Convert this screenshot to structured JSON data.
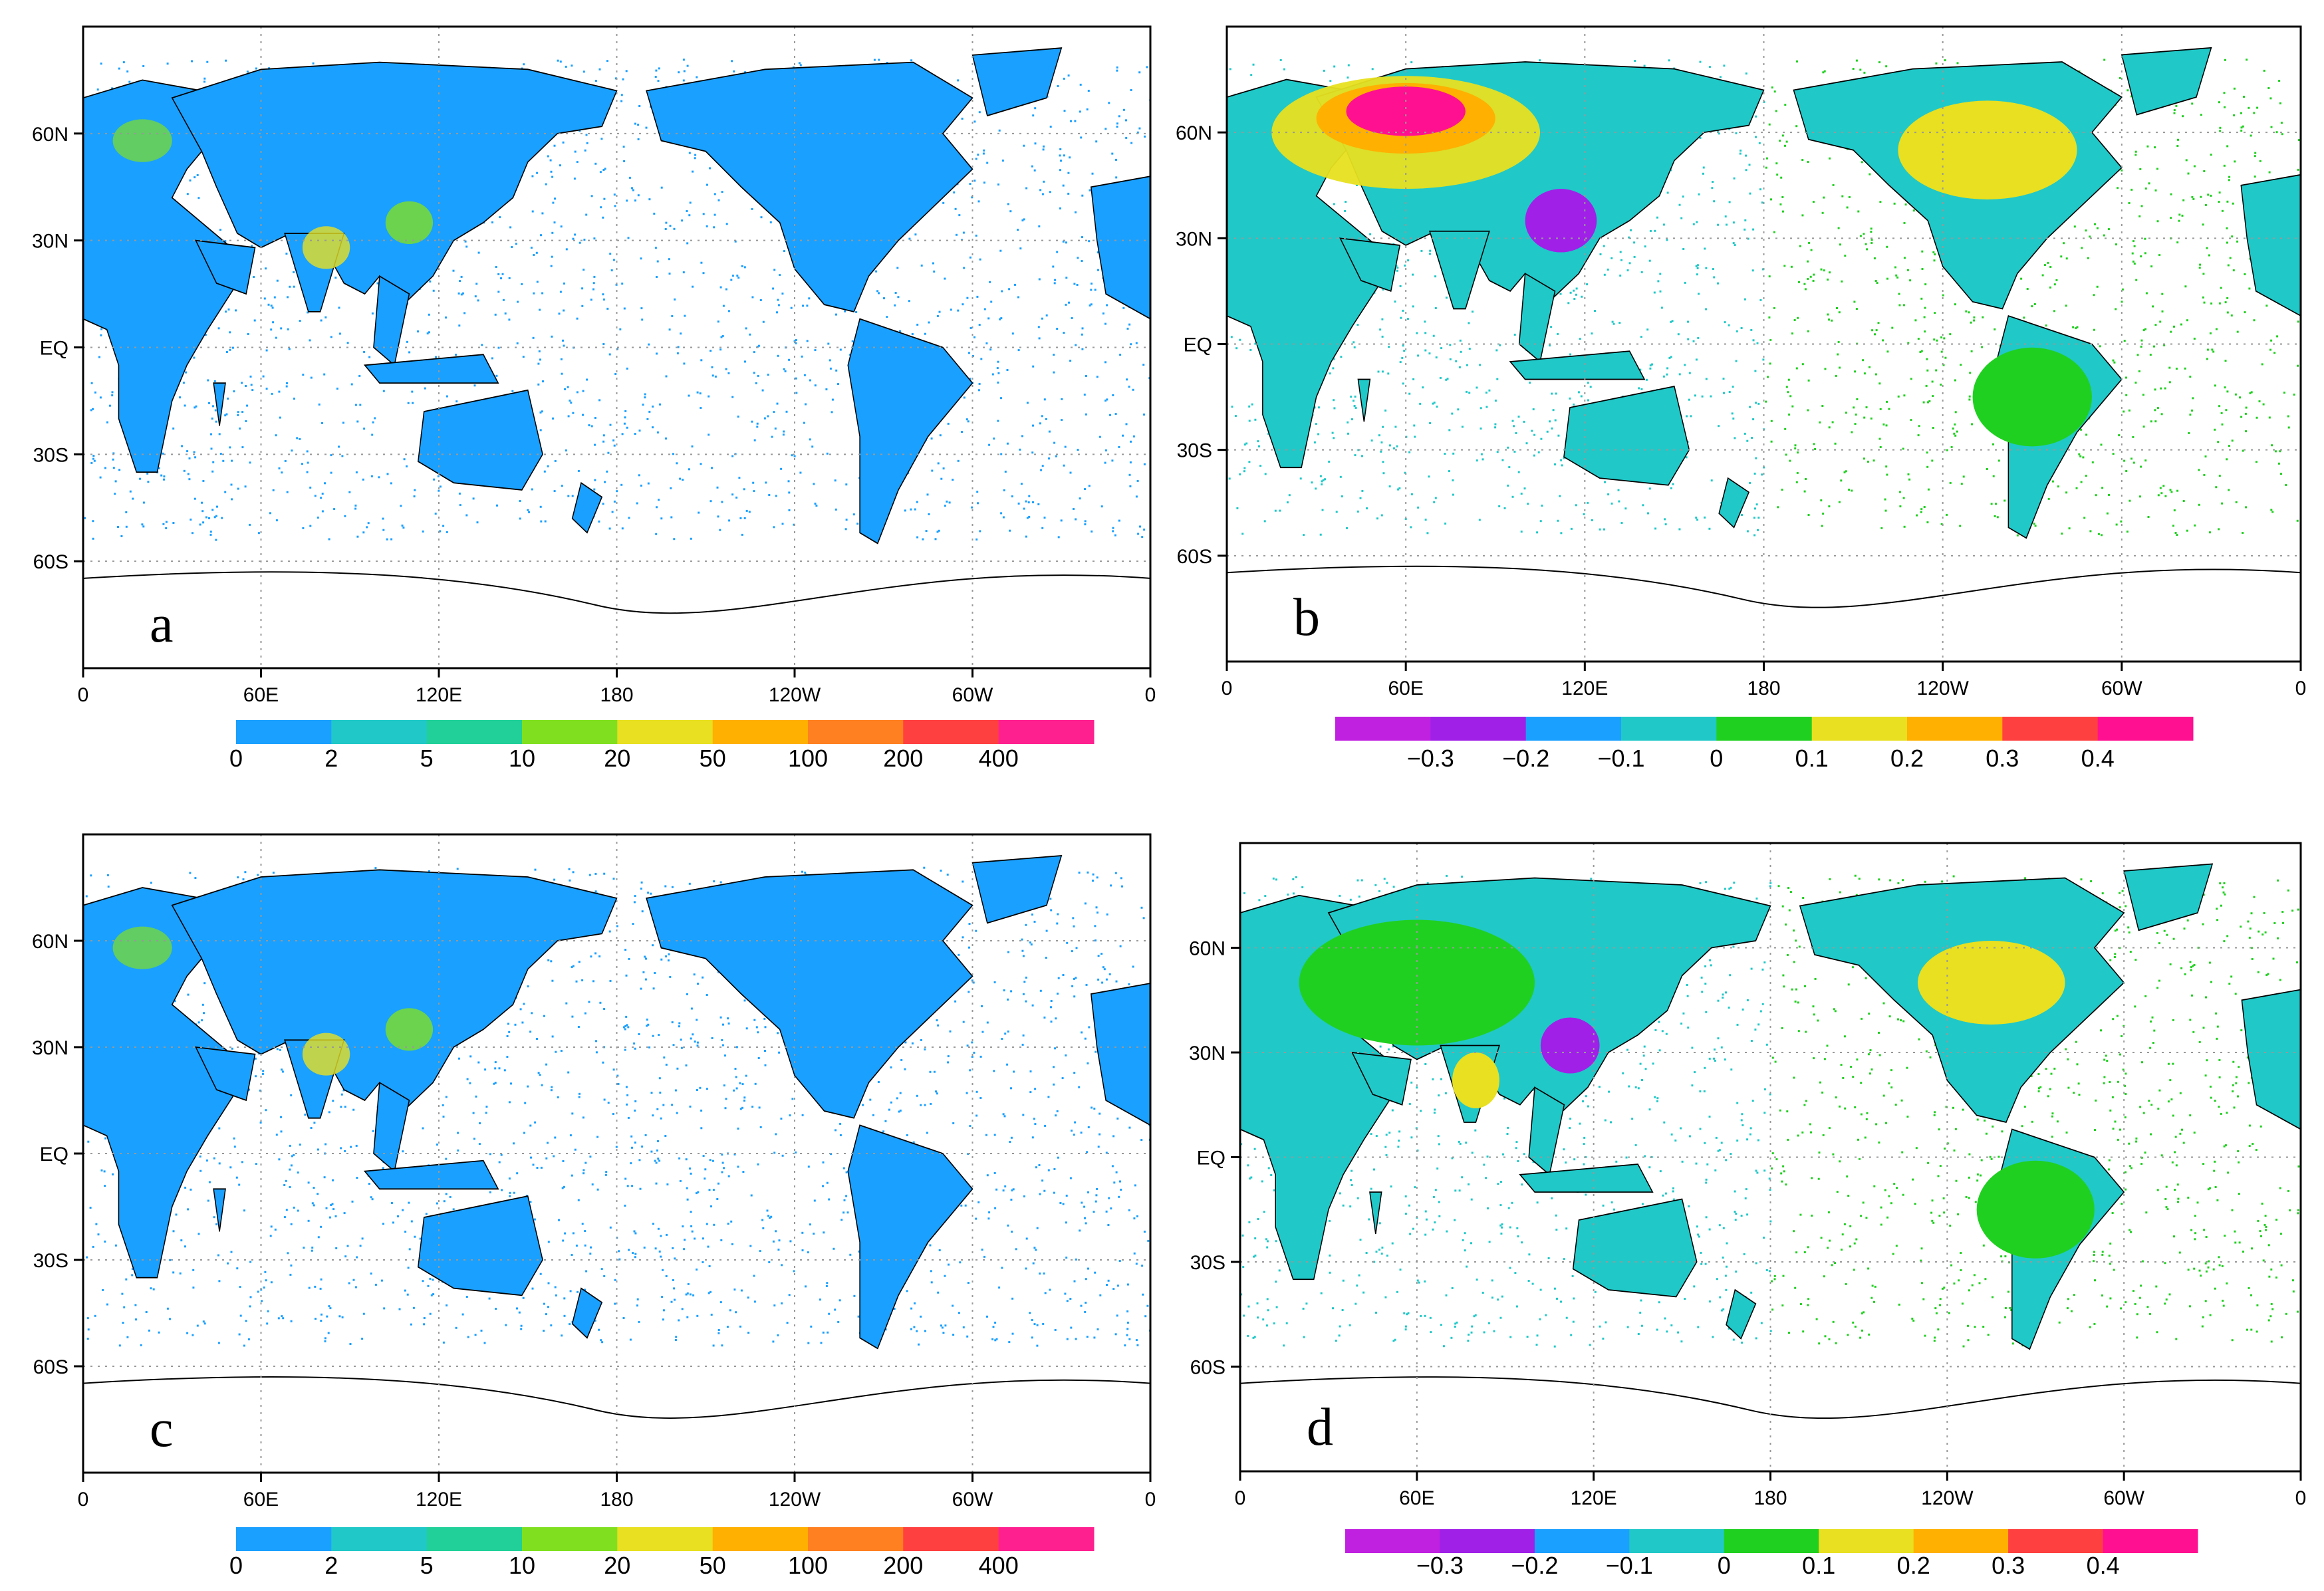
{
  "figure": {
    "panels": [
      {
        "id": "a",
        "label": "a",
        "lon_ticks": [
          "0",
          "60E",
          "120E",
          "180",
          "120W",
          "60W",
          "0"
        ],
        "lat_ticks": [
          "60N",
          "30N",
          "EQ",
          "30S",
          "60S"
        ],
        "colorbar": {
          "labels": [
            "0",
            "2",
            "5",
            "10",
            "20",
            "50",
            "100",
            "200",
            "400"
          ],
          "colors": [
            "#1aa0ff",
            "#20c8c8",
            "#20d098",
            "#80e020",
            "#e8e020",
            "#ffb000",
            "#ff8020",
            "#ff4040",
            "#ff2090"
          ]
        }
      },
      {
        "id": "b",
        "label": "b",
        "lon_ticks": [
          "0",
          "60E",
          "120E",
          "180",
          "120W",
          "60W",
          "0"
        ],
        "lat_ticks": [
          "60N",
          "30N",
          "EQ",
          "30S",
          "60S"
        ],
        "colorbar": {
          "labels": [
            "−0.3",
            "−0.2",
            "−0.1",
            "0",
            "0.1",
            "0.2",
            "0.3",
            "0.4"
          ],
          "colors": [
            "#c020e0",
            "#a020e8",
            "#1aa0ff",
            "#20c8c8",
            "#20d020",
            "#e8e020",
            "#ffb000",
            "#ff4040",
            "#ff1090"
          ]
        }
      },
      {
        "id": "c",
        "label": "c",
        "lon_ticks": [
          "0",
          "60E",
          "120E",
          "180",
          "120W",
          "60W",
          "0"
        ],
        "lat_ticks": [
          "60N",
          "30N",
          "EQ",
          "30S",
          "60S"
        ],
        "colorbar": {
          "labels": [
            "0",
            "2",
            "5",
            "10",
            "20",
            "50",
            "100",
            "200",
            "400"
          ],
          "colors": [
            "#1aa0ff",
            "#20c8c8",
            "#20d098",
            "#80e020",
            "#e8e020",
            "#ffb000",
            "#ff8020",
            "#ff4040",
            "#ff2090"
          ]
        }
      },
      {
        "id": "d",
        "label": "d",
        "lon_ticks": [
          "0",
          "60E",
          "120E",
          "180",
          "120W",
          "60W",
          "0"
        ],
        "lat_ticks": [
          "60N",
          "30N",
          "EQ",
          "30S",
          "60S"
        ],
        "colorbar": {
          "labels": [
            "−0.3",
            "−0.2",
            "−0.1",
            "0",
            "0.1",
            "0.2",
            "0.3",
            "0.4"
          ],
          "colors": [
            "#c020e0",
            "#a020e8",
            "#1aa0ff",
            "#20c8c8",
            "#20d020",
            "#e8e020",
            "#ffb000",
            "#ff4040",
            "#ff1090"
          ]
        }
      }
    ]
  }
}
